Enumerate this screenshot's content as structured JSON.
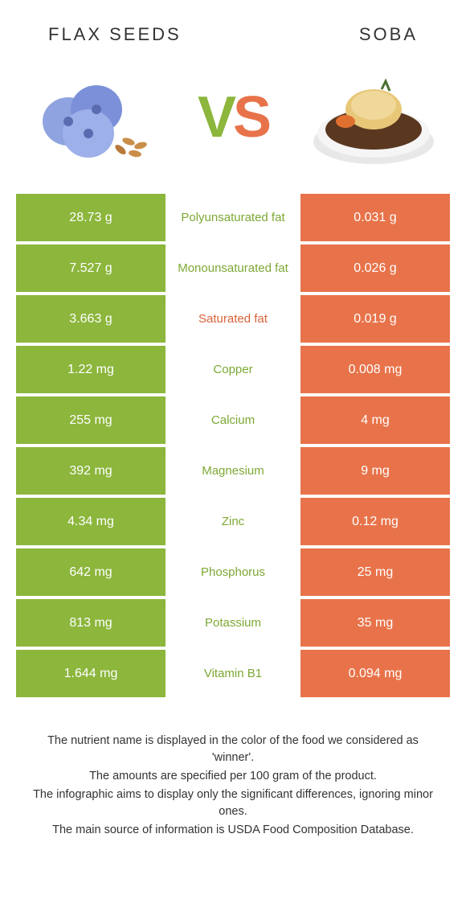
{
  "colors": {
    "left": "#8cb63c",
    "right": "#e8734a",
    "leftLabel": "#7da834",
    "rightLabel": "#d8623b"
  },
  "header": {
    "leftTitle": "FLAX SEEDS",
    "rightTitle": "SOBA"
  },
  "vs": {
    "v": "V",
    "s": "S"
  },
  "rows": [
    {
      "left": "28.73 g",
      "label": "Polyunsaturated fat",
      "right": "0.031 g",
      "winner": "left"
    },
    {
      "left": "7.527 g",
      "label": "Monounsaturated fat",
      "right": "0.026 g",
      "winner": "left"
    },
    {
      "left": "3.663 g",
      "label": "Saturated fat",
      "right": "0.019 g",
      "winner": "right"
    },
    {
      "left": "1.22 mg",
      "label": "Copper",
      "right": "0.008 mg",
      "winner": "left"
    },
    {
      "left": "255 mg",
      "label": "Calcium",
      "right": "4 mg",
      "winner": "left"
    },
    {
      "left": "392 mg",
      "label": "Magnesium",
      "right": "9 mg",
      "winner": "left"
    },
    {
      "left": "4.34 mg",
      "label": "Zinc",
      "right": "0.12 mg",
      "winner": "left"
    },
    {
      "left": "642 mg",
      "label": "Phosphorus",
      "right": "25 mg",
      "winner": "left"
    },
    {
      "left": "813 mg",
      "label": "Potassium",
      "right": "35 mg",
      "winner": "left"
    },
    {
      "left": "1.644 mg",
      "label": "Vitamin B1",
      "right": "0.094 mg",
      "winner": "left"
    }
  ],
  "footer": {
    "l1": "The nutrient name is displayed in the color of the food we considered as 'winner'.",
    "l2": "The amounts are specified per 100 gram of the product.",
    "l3": "The infographic aims to display only the significant differences, ignoring minor ones.",
    "l4": "The main source of information is USDA Food Composition Database."
  }
}
